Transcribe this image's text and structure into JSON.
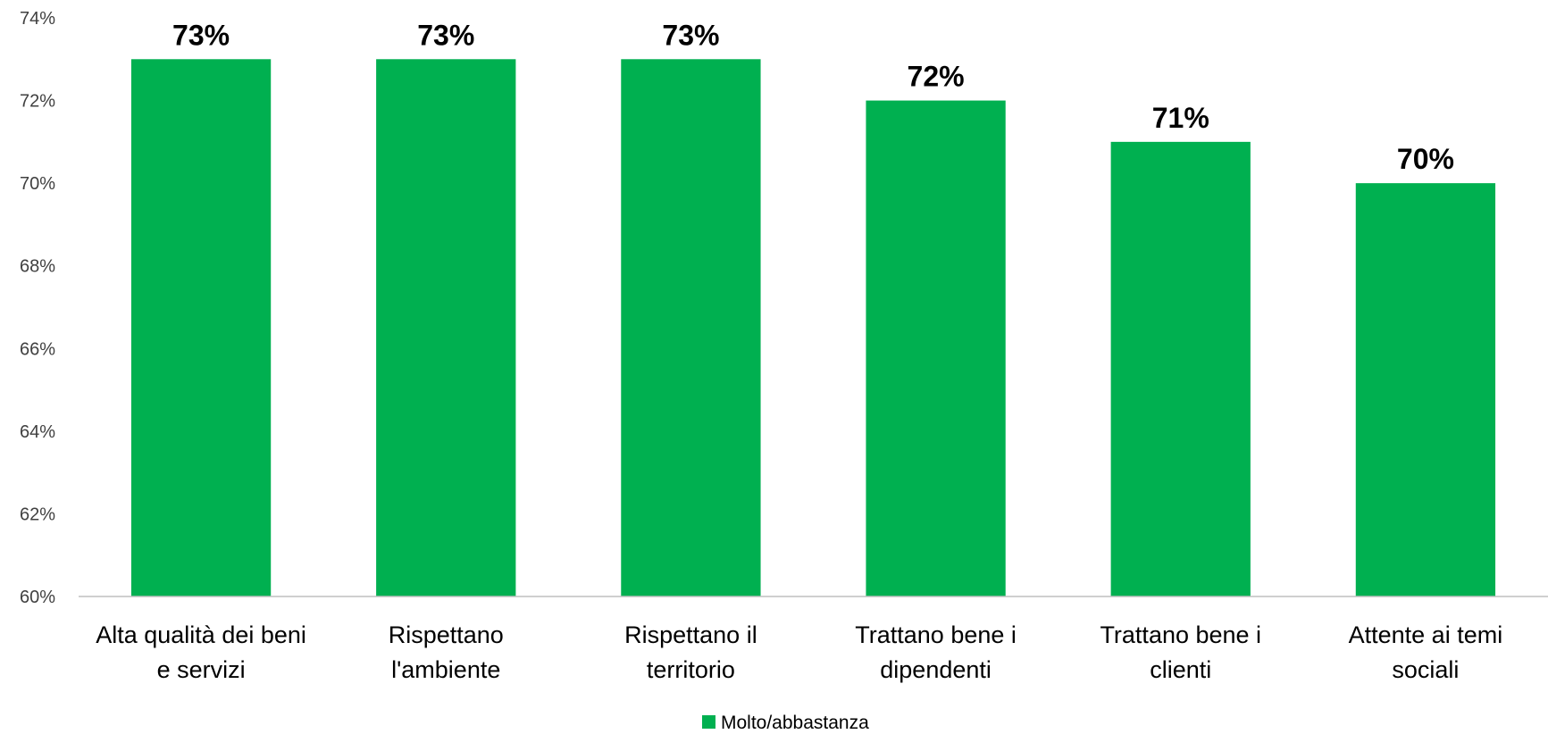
{
  "chart_data": {
    "type": "bar",
    "categories": [
      [
        "Alta qualità dei beni",
        "e servizi"
      ],
      [
        "Rispettano",
        "l'ambiente"
      ],
      [
        "Rispettano il",
        "territorio"
      ],
      [
        "Trattano bene i",
        "dipendenti"
      ],
      [
        "Trattano bene i",
        "clienti"
      ],
      [
        "Attente ai temi",
        "sociali"
      ]
    ],
    "series": [
      {
        "name": "Molto/abbastanza",
        "values": [
          73,
          73,
          73,
          72,
          71,
          70
        ],
        "color": "#00b050"
      }
    ],
    "data_labels": [
      "73%",
      "73%",
      "73%",
      "72%",
      "71%",
      "70%"
    ],
    "y_ticks": [
      "60%",
      "62%",
      "64%",
      "66%",
      "68%",
      "70%",
      "72%",
      "74%"
    ],
    "ylim": [
      60,
      74
    ],
    "grid": false,
    "legend_position": "bottom-center"
  }
}
